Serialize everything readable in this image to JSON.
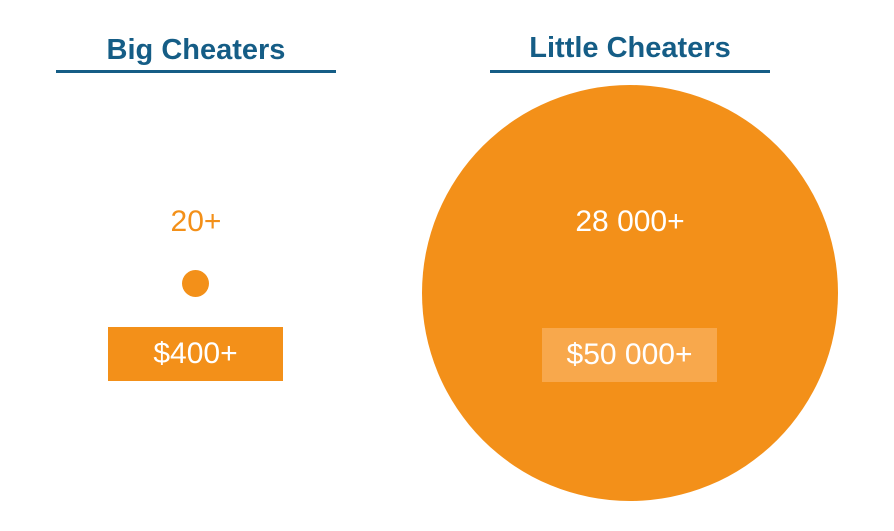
{
  "colors": {
    "heading": "#155d86",
    "accent": "#f39019",
    "accent_light": "#f8a84c",
    "text_on_accent": "#ffffff",
    "background": "#ffffff"
  },
  "big_cheaters": {
    "title": "Big Cheaters",
    "count": "20+",
    "amount": "$400+"
  },
  "little_cheaters": {
    "title": "Little Cheaters",
    "count": "28 000+",
    "amount": "$50 000+"
  }
}
